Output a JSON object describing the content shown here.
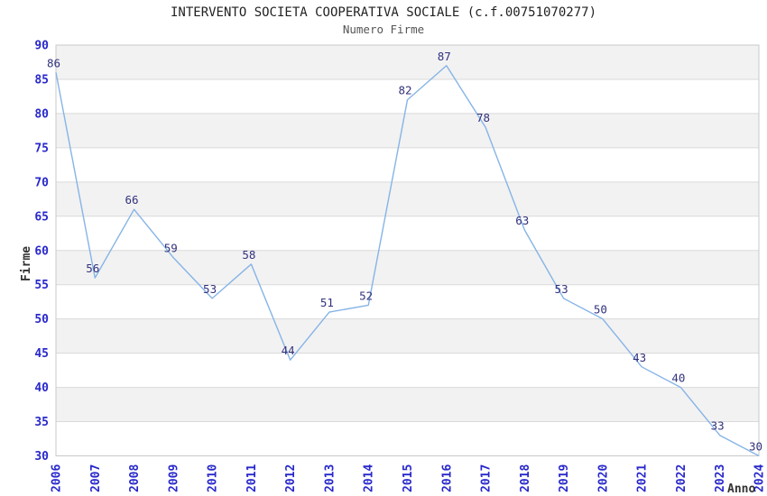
{
  "chart_data": {
    "type": "line",
    "title": "INTERVENTO SOCIETA COOPERATIVA SOCIALE (c.f.00751070277)",
    "subtitle": "Numero Firme",
    "xlabel": "Anno",
    "ylabel": "Firme",
    "categories": [
      "2006",
      "2007",
      "2008",
      "2009",
      "2010",
      "2011",
      "2012",
      "2013",
      "2014",
      "2015",
      "2016",
      "2017",
      "2018",
      "2019",
      "2020",
      "2021",
      "2022",
      "2023",
      "2024"
    ],
    "values": [
      86,
      56,
      66,
      59,
      53,
      58,
      44,
      51,
      52,
      82,
      87,
      78,
      63,
      53,
      50,
      43,
      40,
      33,
      30
    ],
    "ylim": [
      30,
      90
    ],
    "ytick_step": 5,
    "grid": true,
    "legend": "none",
    "band_shading": true,
    "colors": {
      "line": "#86b4e6",
      "data_label": "#32327e",
      "tick_label": "#2828cc",
      "band_shaded": "#f2f2f2",
      "band_plain": "#ffffff",
      "gridline": "#dadada",
      "border": "#c9c9c9",
      "title": "#222222",
      "subtitle": "#555555",
      "axis_title": "#333333"
    }
  }
}
